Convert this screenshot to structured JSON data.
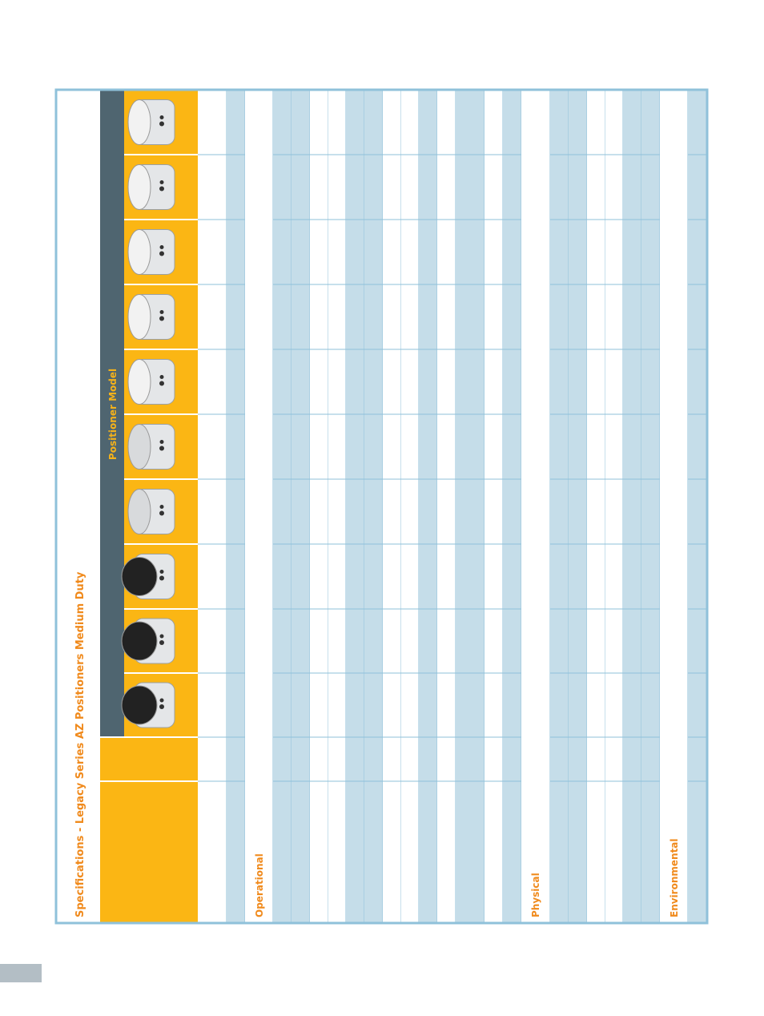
{
  "header": {
    "title": "Specifications - Legacy Series AZ Positioners Medium Duty",
    "column_group": "Positioner Model"
  },
  "sections": [
    {
      "label": "Operational"
    },
    {
      "label": "Physical"
    },
    {
      "label": "Environmental"
    }
  ]
}
